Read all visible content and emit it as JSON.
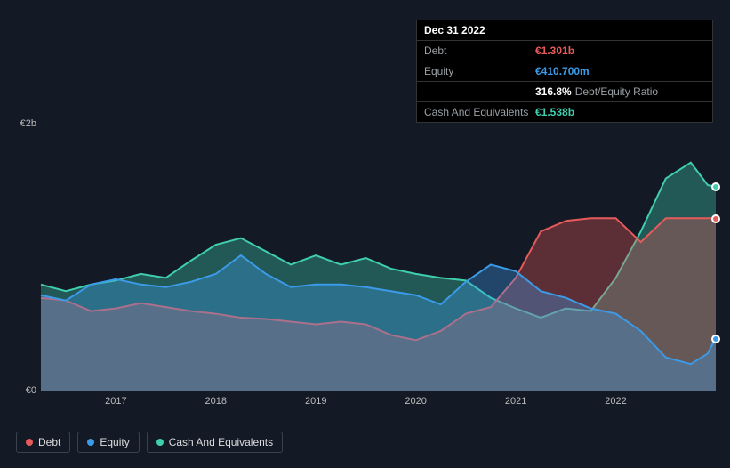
{
  "tooltip": {
    "date": "Dec 31 2022",
    "rows": [
      {
        "label": "Debt",
        "value": "€1.301b",
        "color": "#e65a5a"
      },
      {
        "label": "Equity",
        "value": "€410.700m",
        "color": "#3b9be8"
      },
      {
        "label": "",
        "value": "316.8%",
        "sublabel": "Debt/Equity Ratio",
        "color": "#ffffff"
      },
      {
        "label": "Cash And Equivalents",
        "value": "€1.538b",
        "color": "#3fcfae"
      }
    ]
  },
  "chart": {
    "type": "area",
    "background_color": "#131a25",
    "grid_color": "#444",
    "x_start_year": 2016.25,
    "x_end_year": 2023.0,
    "x_tick_years": [
      2017,
      2018,
      2019,
      2020,
      2021,
      2022
    ],
    "y_ticks": [
      {
        "v": 0,
        "label": "€0"
      },
      {
        "v": 2.0,
        "label": "€2b"
      }
    ],
    "y_min": 0,
    "y_max": 2.0,
    "fill_opacity": 0.35,
    "line_width": 2,
    "series": [
      {
        "name": "Cash And Equivalents",
        "color": "#3fcfae",
        "points": [
          [
            2016.25,
            0.8
          ],
          [
            2016.5,
            0.75
          ],
          [
            2016.75,
            0.8
          ],
          [
            2017.0,
            0.83
          ],
          [
            2017.25,
            0.88
          ],
          [
            2017.5,
            0.85
          ],
          [
            2017.75,
            0.98
          ],
          [
            2018.0,
            1.1
          ],
          [
            2018.25,
            1.15
          ],
          [
            2018.5,
            1.05
          ],
          [
            2018.75,
            0.95
          ],
          [
            2019.0,
            1.02
          ],
          [
            2019.25,
            0.95
          ],
          [
            2019.5,
            1.0
          ],
          [
            2019.75,
            0.92
          ],
          [
            2020.0,
            0.88
          ],
          [
            2020.25,
            0.85
          ],
          [
            2020.5,
            0.83
          ],
          [
            2020.75,
            0.7
          ],
          [
            2021.0,
            0.62
          ],
          [
            2021.25,
            0.55
          ],
          [
            2021.5,
            0.62
          ],
          [
            2021.75,
            0.6
          ],
          [
            2022.0,
            0.85
          ],
          [
            2022.25,
            1.2
          ],
          [
            2022.5,
            1.6
          ],
          [
            2022.75,
            1.72
          ],
          [
            2022.92,
            1.55
          ],
          [
            2023.0,
            1.54
          ]
        ]
      },
      {
        "name": "Debt",
        "color": "#e65a5a",
        "points": [
          [
            2016.25,
            0.7
          ],
          [
            2016.5,
            0.68
          ],
          [
            2016.75,
            0.6
          ],
          [
            2017.0,
            0.62
          ],
          [
            2017.25,
            0.66
          ],
          [
            2017.5,
            0.63
          ],
          [
            2017.75,
            0.6
          ],
          [
            2018.0,
            0.58
          ],
          [
            2018.25,
            0.55
          ],
          [
            2018.5,
            0.54
          ],
          [
            2018.75,
            0.52
          ],
          [
            2019.0,
            0.5
          ],
          [
            2019.25,
            0.52
          ],
          [
            2019.5,
            0.5
          ],
          [
            2019.75,
            0.42
          ],
          [
            2020.0,
            0.38
          ],
          [
            2020.25,
            0.45
          ],
          [
            2020.5,
            0.58
          ],
          [
            2020.75,
            0.63
          ],
          [
            2021.0,
            0.85
          ],
          [
            2021.25,
            1.2
          ],
          [
            2021.5,
            1.28
          ],
          [
            2021.75,
            1.3
          ],
          [
            2022.0,
            1.3
          ],
          [
            2022.25,
            1.12
          ],
          [
            2022.5,
            1.3
          ],
          [
            2022.75,
            1.3
          ],
          [
            2023.0,
            1.3
          ]
        ]
      },
      {
        "name": "Equity",
        "color": "#3b9be8",
        "points": [
          [
            2016.25,
            0.72
          ],
          [
            2016.5,
            0.68
          ],
          [
            2016.75,
            0.8
          ],
          [
            2017.0,
            0.84
          ],
          [
            2017.25,
            0.8
          ],
          [
            2017.5,
            0.78
          ],
          [
            2017.75,
            0.82
          ],
          [
            2018.0,
            0.88
          ],
          [
            2018.25,
            1.02
          ],
          [
            2018.5,
            0.88
          ],
          [
            2018.75,
            0.78
          ],
          [
            2019.0,
            0.8
          ],
          [
            2019.25,
            0.8
          ],
          [
            2019.5,
            0.78
          ],
          [
            2019.75,
            0.75
          ],
          [
            2020.0,
            0.72
          ],
          [
            2020.25,
            0.65
          ],
          [
            2020.5,
            0.82
          ],
          [
            2020.75,
            0.95
          ],
          [
            2021.0,
            0.9
          ],
          [
            2021.25,
            0.75
          ],
          [
            2021.5,
            0.7
          ],
          [
            2021.75,
            0.62
          ],
          [
            2022.0,
            0.58
          ],
          [
            2022.25,
            0.45
          ],
          [
            2022.5,
            0.25
          ],
          [
            2022.75,
            0.2
          ],
          [
            2022.92,
            0.28
          ],
          [
            2023.0,
            0.4
          ]
        ]
      }
    ],
    "markers_at_x": 2023.0
  },
  "legend": {
    "items": [
      {
        "label": "Debt",
        "color": "#e65a5a"
      },
      {
        "label": "Equity",
        "color": "#3b9be8"
      },
      {
        "label": "Cash And Equivalents",
        "color": "#3fcfae"
      }
    ]
  }
}
